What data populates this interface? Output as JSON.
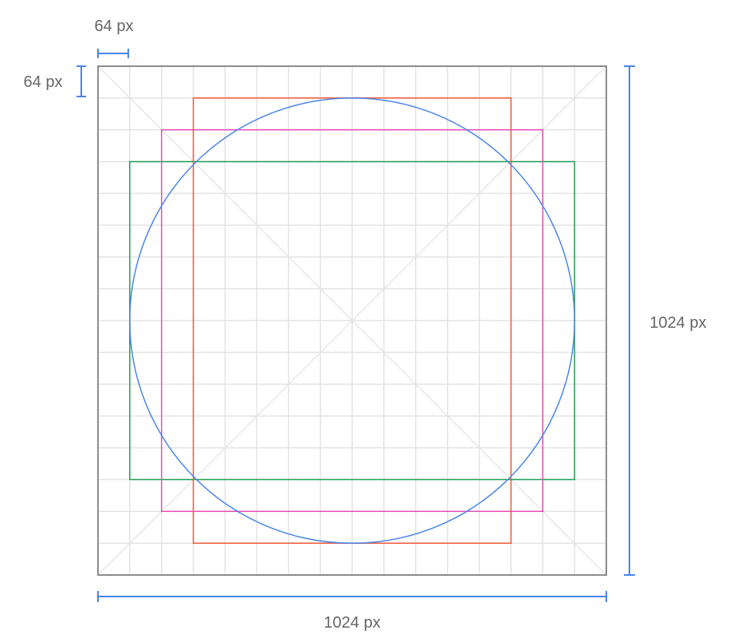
{
  "labels": {
    "unit_width": "64 px",
    "unit_height": "64 px",
    "total_height": "1024 px",
    "total_width": "1024 px"
  },
  "colors": {
    "frame": "#8c8c8c",
    "grid": "#e3e3e3",
    "diagonal": "#e6e6e6",
    "dimension": "#4a86e8",
    "portrait_rect": "#f05a3a",
    "square": "#e94fb3",
    "landscape_rect": "#1fa055",
    "circle": "#4a86e8",
    "label_text": "#666666"
  },
  "icon_template": {
    "canvas_size": 1024,
    "grid_unit": 64,
    "keylines": [
      {
        "name": "portrait-rect",
        "width": 640,
        "height": 896
      },
      {
        "name": "square",
        "width": 768,
        "height": 768
      },
      {
        "name": "landscape-rect",
        "width": 896,
        "height": 640
      },
      {
        "name": "circle",
        "diameter": 896
      }
    ]
  }
}
